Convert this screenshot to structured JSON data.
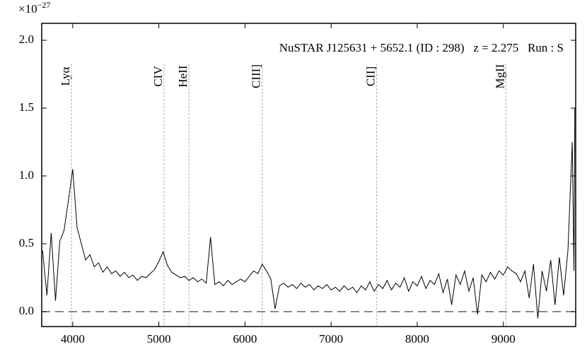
{
  "chart_data": {
    "type": "line",
    "title": "NuSTAR J125631 + 5652.1 (ID : 298)   z = 2.275   Run : S",
    "y_multiplier": "×10",
    "y_exponent": "−27",
    "x": [
      3650,
      3700,
      3750,
      3800,
      3850,
      3900,
      3950,
      4000,
      4050,
      4100,
      4150,
      4200,
      4250,
      4300,
      4350,
      4400,
      4450,
      4500,
      4550,
      4600,
      4650,
      4700,
      4750,
      4800,
      4850,
      4900,
      4950,
      5000,
      5050,
      5100,
      5150,
      5200,
      5250,
      5300,
      5350,
      5400,
      5450,
      5500,
      5550,
      5600,
      5650,
      5700,
      5750,
      5800,
      5850,
      5900,
      5950,
      6000,
      6050,
      6100,
      6150,
      6200,
      6250,
      6300,
      6350,
      6400,
      6450,
      6500,
      6550,
      6600,
      6650,
      6700,
      6750,
      6800,
      6850,
      6900,
      6950,
      7000,
      7050,
      7100,
      7150,
      7200,
      7250,
      7300,
      7350,
      7400,
      7450,
      7500,
      7550,
      7600,
      7650,
      7700,
      7750,
      7800,
      7850,
      7900,
      7950,
      8000,
      8050,
      8100,
      8150,
      8200,
      8250,
      8300,
      8350,
      8400,
      8450,
      8500,
      8550,
      8600,
      8650,
      8700,
      8750,
      8800,
      8850,
      8900,
      8950,
      9000,
      9050,
      9100,
      9150,
      9200,
      9250,
      9300,
      9350,
      9400,
      9450,
      9500,
      9550,
      9600,
      9650,
      9700,
      9750,
      9800,
      9820,
      9830
    ],
    "series": [
      {
        "color": "#000000",
        "values": [
          0.45,
          0.12,
          0.58,
          0.08,
          0.52,
          0.6,
          0.82,
          1.05,
          0.62,
          0.5,
          0.38,
          0.42,
          0.33,
          0.36,
          0.29,
          0.33,
          0.28,
          0.3,
          0.26,
          0.29,
          0.25,
          0.27,
          0.23,
          0.26,
          0.25,
          0.28,
          0.31,
          0.37,
          0.44,
          0.34,
          0.29,
          0.27,
          0.25,
          0.26,
          0.23,
          0.25,
          0.22,
          0.24,
          0.21,
          0.55,
          0.2,
          0.22,
          0.19,
          0.23,
          0.2,
          0.22,
          0.24,
          0.22,
          0.26,
          0.3,
          0.28,
          0.35,
          0.3,
          0.24,
          0.02,
          0.19,
          0.21,
          0.18,
          0.2,
          0.17,
          0.21,
          0.18,
          0.2,
          0.16,
          0.19,
          0.17,
          0.2,
          0.16,
          0.18,
          0.15,
          0.19,
          0.16,
          0.18,
          0.14,
          0.19,
          0.16,
          0.22,
          0.15,
          0.2,
          0.17,
          0.23,
          0.16,
          0.21,
          0.18,
          0.25,
          0.15,
          0.22,
          0.19,
          0.26,
          0.17,
          0.23,
          0.2,
          0.28,
          0.14,
          0.24,
          0.05,
          0.27,
          0.2,
          0.3,
          0.15,
          0.25,
          -0.02,
          0.27,
          0.22,
          0.29,
          0.24,
          0.3,
          0.27,
          0.33,
          0.3,
          0.28,
          0.22,
          0.3,
          0.1,
          0.35,
          -0.05,
          0.3,
          0.15,
          0.38,
          0.05,
          0.4,
          0.12,
          0.45,
          1.25,
          0.3,
          1.5
        ]
      }
    ],
    "emission_lines": [
      {
        "label": "Lyα",
        "x": 3985
      },
      {
        "label": "CIV",
        "x": 5060
      },
      {
        "label": "HeII",
        "x": 5350
      },
      {
        "label": "CIII]",
        "x": 6200
      },
      {
        "label": "CII]",
        "x": 7530
      },
      {
        "label": "MgII",
        "x": 9030
      }
    ],
    "zero_line": 0,
    "xlim": [
      3640,
      9840
    ],
    "ylim": [
      -0.11,
      2.125
    ],
    "xticks": [
      4000,
      5000,
      6000,
      7000,
      8000,
      9000
    ],
    "yticks": [
      {
        "value": 0,
        "label": "0.0"
      },
      {
        "value": 0.5,
        "label": "0.5"
      },
      {
        "value": 1,
        "label": "1.0"
      },
      {
        "value": 1.5,
        "label": "1.5"
      },
      {
        "value": 2,
        "label": "2.0"
      }
    ]
  }
}
